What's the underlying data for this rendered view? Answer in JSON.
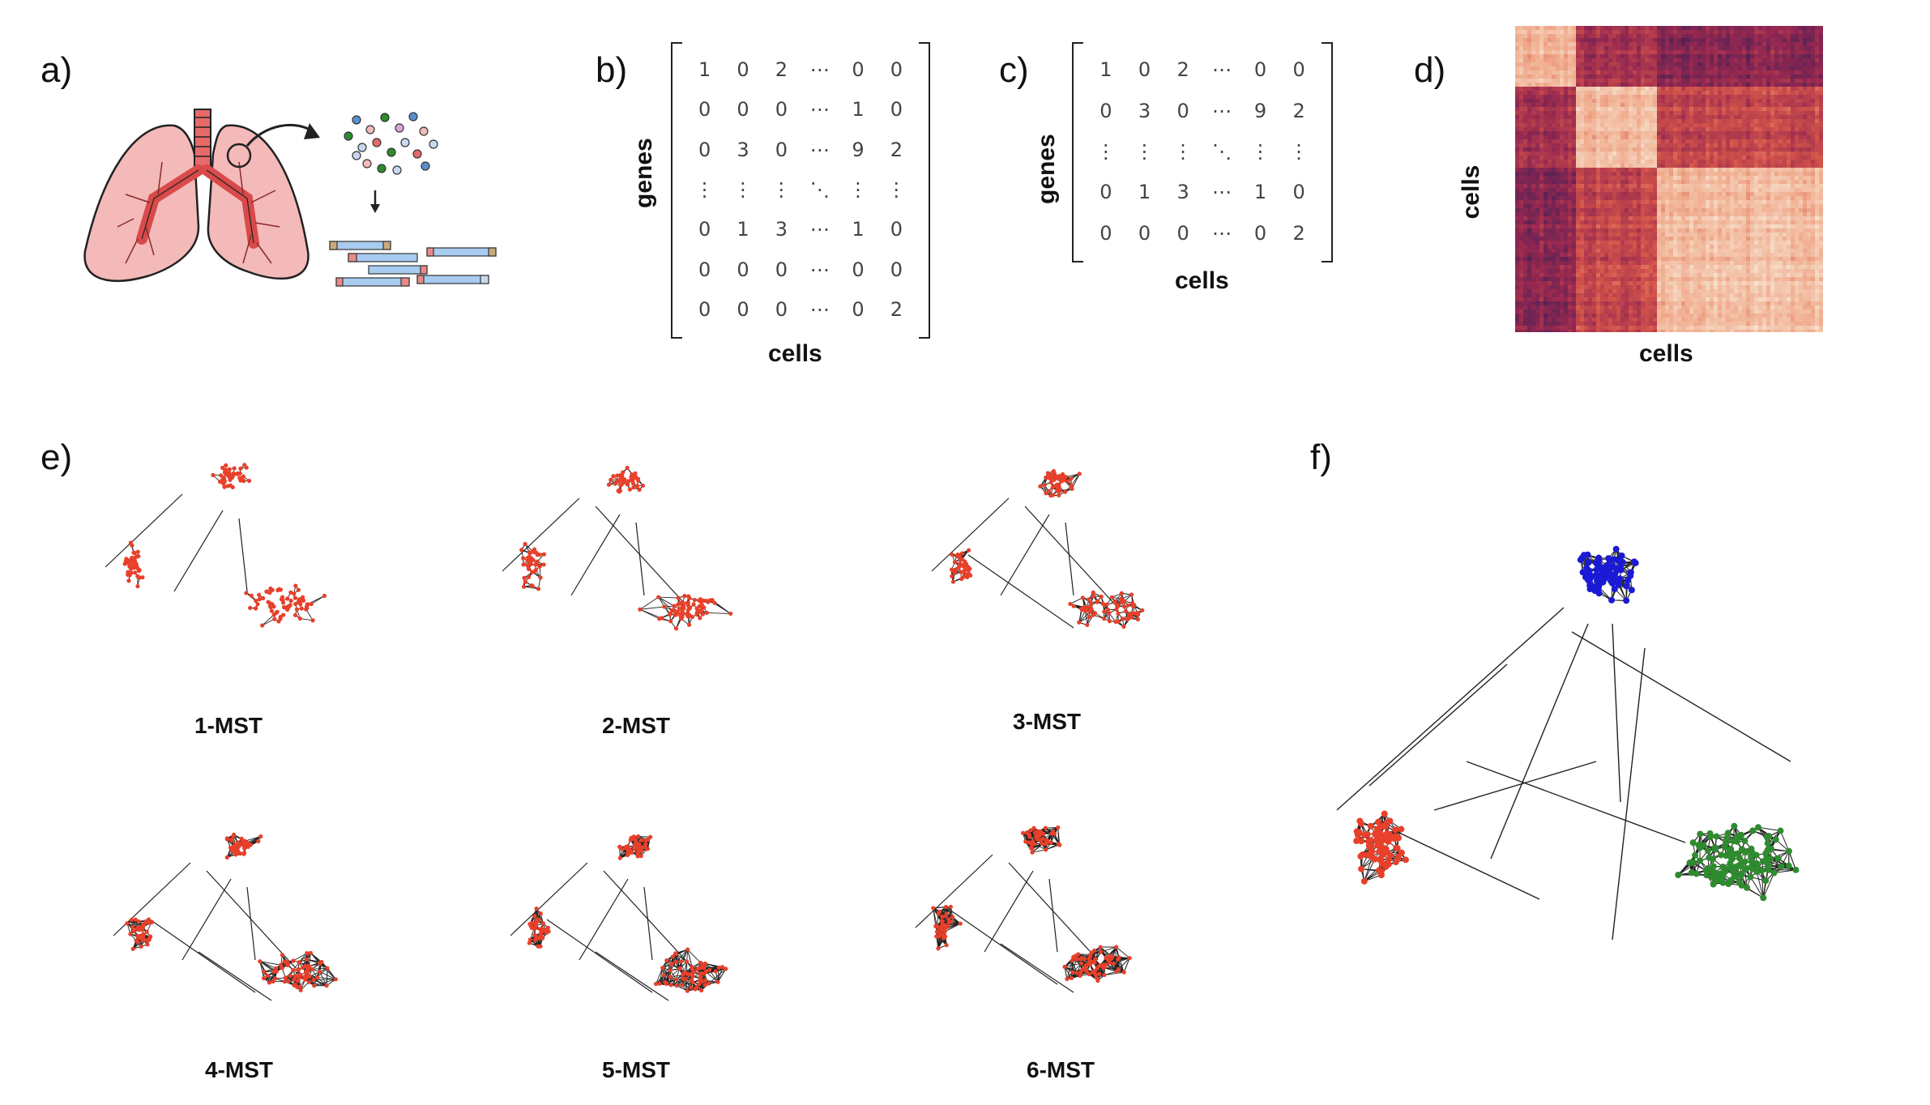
{
  "panels": {
    "a": "a)",
    "b": "b)",
    "c": "c)",
    "d": "d)",
    "e": "e)",
    "f": "f)"
  },
  "matrix_b": {
    "ylabel": "genes",
    "xlabel": "cells",
    "rows": [
      [
        "1",
        "0",
        "2",
        "⋯",
        "0",
        "0"
      ],
      [
        "0",
        "0",
        "0",
        "⋯",
        "1",
        "0"
      ],
      [
        "0",
        "3",
        "0",
        "⋯",
        "9",
        "2"
      ],
      [
        "⋮",
        "⋮",
        "⋮",
        "⋱",
        "⋮",
        "⋮"
      ],
      [
        "0",
        "1",
        "3",
        "⋯",
        "1",
        "0"
      ],
      [
        "0",
        "0",
        "0",
        "⋯",
        "0",
        "0"
      ],
      [
        "0",
        "0",
        "0",
        "⋯",
        "0",
        "2"
      ]
    ]
  },
  "matrix_c": {
    "ylabel": "genes",
    "xlabel": "cells",
    "rows": [
      [
        "1",
        "0",
        "2",
        "⋯",
        "0",
        "0"
      ],
      [
        "0",
        "3",
        "0",
        "⋯",
        "9",
        "2"
      ],
      [
        "⋮",
        "⋮",
        "⋮",
        "⋱",
        "⋮",
        "⋮"
      ],
      [
        "0",
        "1",
        "3",
        "⋯",
        "1",
        "0"
      ],
      [
        "0",
        "0",
        "0",
        "⋯",
        "0",
        "2"
      ]
    ]
  },
  "heatmap": {
    "ylabel": "cells",
    "xlabel": "cells",
    "colors": {
      "low": "#f7e1cd",
      "mid": "#d4544a",
      "high": "#3b1f57"
    }
  },
  "graphs": {
    "labels": [
      "1-MST",
      "2-MST",
      "3-MST",
      "4-MST",
      "5-MST",
      "6-MST"
    ],
    "node_color": "#e8402a",
    "edge_color": "#222222"
  },
  "clusters": {
    "colors": [
      "#1a1ad6",
      "#e8402a",
      "#2e8b2e"
    ]
  }
}
